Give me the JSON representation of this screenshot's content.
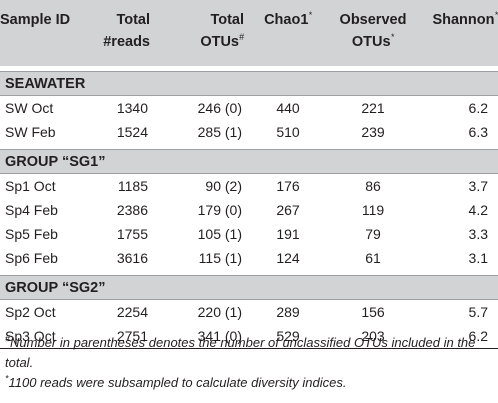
{
  "table": {
    "headers": [
      {
        "line1": "Sample ID",
        "line2": "",
        "mark": ""
      },
      {
        "line1": "Total",
        "line2": "#reads",
        "mark": ""
      },
      {
        "line1": "Total",
        "line2": "OTUs",
        "mark": "#"
      },
      {
        "line1": "Chao1",
        "line2": "",
        "mark": "*"
      },
      {
        "line1": "Observed",
        "line2": "OTUs",
        "mark": "*"
      },
      {
        "line1": "Shannon",
        "line2": "",
        "mark": "*"
      }
    ],
    "groups": [
      {
        "label": "SEAWATER",
        "rows": [
          [
            "SW Oct",
            "1340",
            "246 (0)",
            "440",
            "221",
            "6.2"
          ],
          [
            "SW Feb",
            "1524",
            "285 (1)",
            "510",
            "239",
            "6.3"
          ]
        ]
      },
      {
        "label": "GROUP “SG1”",
        "rows": [
          [
            "Sp1 Oct",
            "1185",
            "90 (2)",
            "176",
            "86",
            "3.7"
          ],
          [
            "Sp4 Feb",
            "2386",
            "179 (0)",
            "267",
            "119",
            "4.2"
          ],
          [
            "Sp5 Feb",
            "1755",
            "105 (1)",
            "191",
            "79",
            "3.3"
          ],
          [
            "Sp6 Feb",
            "3616",
            "115 (1)",
            "124",
            "61",
            "3.1"
          ]
        ]
      },
      {
        "label": "GROUP “SG2”",
        "rows": [
          [
            "Sp2 Oct",
            "2254",
            "220 (1)",
            "289",
            "156",
            "5.7"
          ],
          [
            "Sp3 Oct",
            "2751",
            "341 (0)",
            "529",
            "203",
            "6.2"
          ]
        ]
      }
    ]
  },
  "footnotes": {
    "hash_mark": "#",
    "hash_text": "Number in parentheses denotes the number of unclassified OTUs included in the total.",
    "star_mark": "*",
    "star_text": "1100 reads were subsampled to calculate diversity indices."
  }
}
